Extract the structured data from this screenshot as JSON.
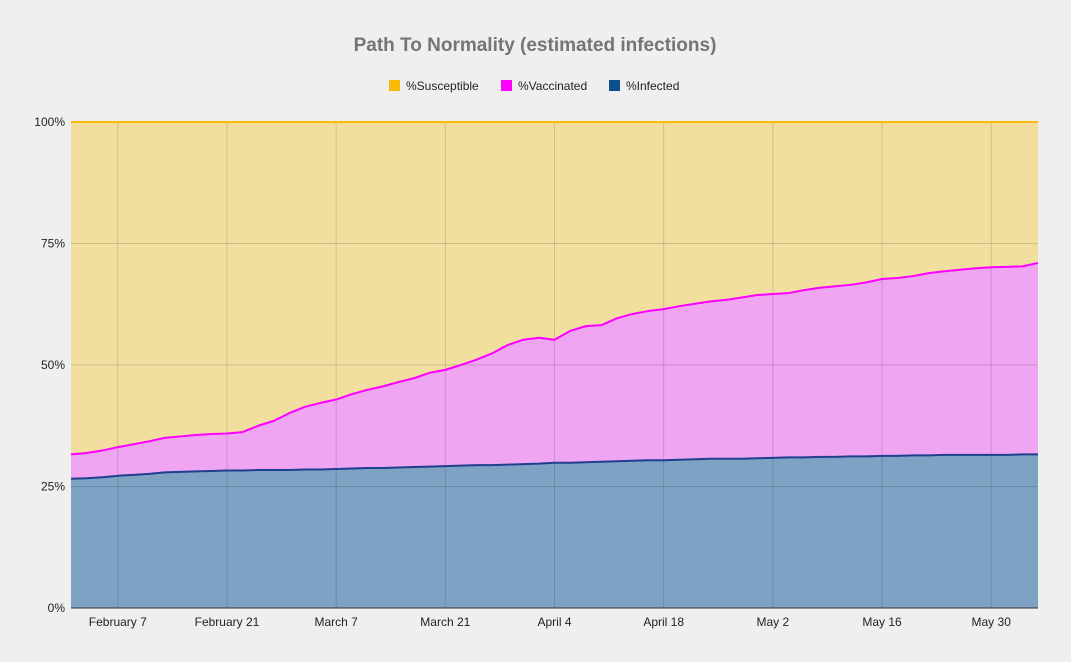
{
  "chart_data": {
    "type": "area",
    "stacked": true,
    "title": "Path To Normality (estimated infections)",
    "xlabel": "",
    "ylabel": "",
    "ylim": [
      0,
      100
    ],
    "y_ticks": [
      "0%",
      "25%",
      "50%",
      "75%",
      "100%"
    ],
    "x_ticks": [
      "February 7",
      "February 21",
      "March 7",
      "March 21",
      "April 4",
      "April 18",
      "May 2",
      "May 16",
      "May 30"
    ],
    "x_tick_dates": [
      "2021-02-07",
      "2021-02-21",
      "2021-03-07",
      "2021-03-21",
      "2021-04-04",
      "2021-04-18",
      "2021-05-02",
      "2021-05-16",
      "2021-05-30"
    ],
    "x_range": [
      "2021-02-01",
      "2021-06-05"
    ],
    "legend_position": "top",
    "grid": true,
    "x": [
      "2021-02-01",
      "2021-02-03",
      "2021-02-05",
      "2021-02-07",
      "2021-02-09",
      "2021-02-11",
      "2021-02-13",
      "2021-02-15",
      "2021-02-17",
      "2021-02-19",
      "2021-02-21",
      "2021-02-23",
      "2021-02-25",
      "2021-02-27",
      "2021-03-01",
      "2021-03-03",
      "2021-03-05",
      "2021-03-07",
      "2021-03-09",
      "2021-03-11",
      "2021-03-13",
      "2021-03-15",
      "2021-03-17",
      "2021-03-19",
      "2021-03-21",
      "2021-03-23",
      "2021-03-25",
      "2021-03-27",
      "2021-03-29",
      "2021-03-31",
      "2021-04-02",
      "2021-04-04",
      "2021-04-06",
      "2021-04-08",
      "2021-04-10",
      "2021-04-12",
      "2021-04-14",
      "2021-04-16",
      "2021-04-18",
      "2021-04-20",
      "2021-04-22",
      "2021-04-24",
      "2021-04-26",
      "2021-04-28",
      "2021-04-30",
      "2021-05-02",
      "2021-05-04",
      "2021-05-06",
      "2021-05-08",
      "2021-05-10",
      "2021-05-12",
      "2021-05-14",
      "2021-05-16",
      "2021-05-18",
      "2021-05-20",
      "2021-05-22",
      "2021-05-24",
      "2021-05-26",
      "2021-05-28",
      "2021-05-30",
      "2021-06-01",
      "2021-06-03",
      "2021-06-05"
    ],
    "series": [
      {
        "name": "%Susceptible",
        "color": "#f2df9f",
        "legend_color": "#f7bb0a",
        "values": [
          68.4,
          68.1,
          67.6,
          66.9,
          66.3,
          65.7,
          65.0,
          64.7,
          64.4,
          64.2,
          64.1,
          63.8,
          62.5,
          61.5,
          59.9,
          58.6,
          57.8,
          57.1,
          56.0,
          55.1,
          54.4,
          53.5,
          52.7,
          51.6,
          51.0,
          50.0,
          48.9,
          47.6,
          45.9,
          44.8,
          44.4,
          44.8,
          43.0,
          42.0,
          41.8,
          40.4,
          39.5,
          38.9,
          38.5,
          37.9,
          37.4,
          36.9,
          36.6,
          36.1,
          35.6,
          35.4,
          35.2,
          34.6,
          34.1,
          33.8,
          33.5,
          33.0,
          32.3,
          32.1,
          31.7,
          31.1,
          30.7,
          30.4,
          30.1,
          29.9,
          29.8,
          29.7,
          29.0
        ]
      },
      {
        "name": "%Vaccinated",
        "color": "#f0a5f2",
        "legend_color": "#ff00ff",
        "values": [
          5.0,
          5.2,
          5.5,
          5.9,
          6.3,
          6.7,
          7.1,
          7.3,
          7.5,
          7.6,
          7.6,
          7.9,
          9.1,
          10.1,
          11.7,
          12.9,
          13.7,
          14.3,
          15.3,
          16.1,
          16.8,
          17.6,
          18.3,
          19.3,
          19.8,
          20.7,
          21.7,
          23.0,
          24.6,
          25.6,
          25.9,
          25.3,
          27.1,
          28.0,
          28.1,
          29.4,
          30.2,
          30.7,
          31.1,
          31.6,
          32.0,
          32.4,
          32.7,
          33.2,
          33.6,
          33.7,
          33.8,
          34.4,
          34.8,
          35.1,
          35.3,
          35.8,
          36.4,
          36.6,
          36.9,
          37.5,
          37.8,
          38.1,
          38.4,
          38.6,
          38.7,
          38.7,
          39.4
        ]
      },
      {
        "name": "%Infected",
        "color": "#7ea2c4",
        "legend_color": "#0c4f8d",
        "values": [
          26.6,
          26.7,
          26.9,
          27.2,
          27.4,
          27.6,
          27.9,
          28.0,
          28.1,
          28.2,
          28.3,
          28.3,
          28.4,
          28.4,
          28.4,
          28.5,
          28.5,
          28.6,
          28.7,
          28.8,
          28.8,
          28.9,
          29.0,
          29.1,
          29.2,
          29.3,
          29.4,
          29.4,
          29.5,
          29.6,
          29.7,
          29.9,
          29.9,
          30.0,
          30.1,
          30.2,
          30.3,
          30.4,
          30.4,
          30.5,
          30.6,
          30.7,
          30.7,
          30.7,
          30.8,
          30.9,
          31.0,
          31.0,
          31.1,
          31.1,
          31.2,
          31.2,
          31.3,
          31.3,
          31.4,
          31.4,
          31.5,
          31.5,
          31.5,
          31.5,
          31.5,
          31.6,
          31.6
        ]
      }
    ],
    "stack_order": [
      "%Infected",
      "%Vaccinated",
      "%Susceptible"
    ],
    "line_colors": {
      "%Vaccinated": "#ff00ff",
      "%Infected": "#1f3f8f",
      "%Susceptible": "#f7bb0a"
    }
  }
}
